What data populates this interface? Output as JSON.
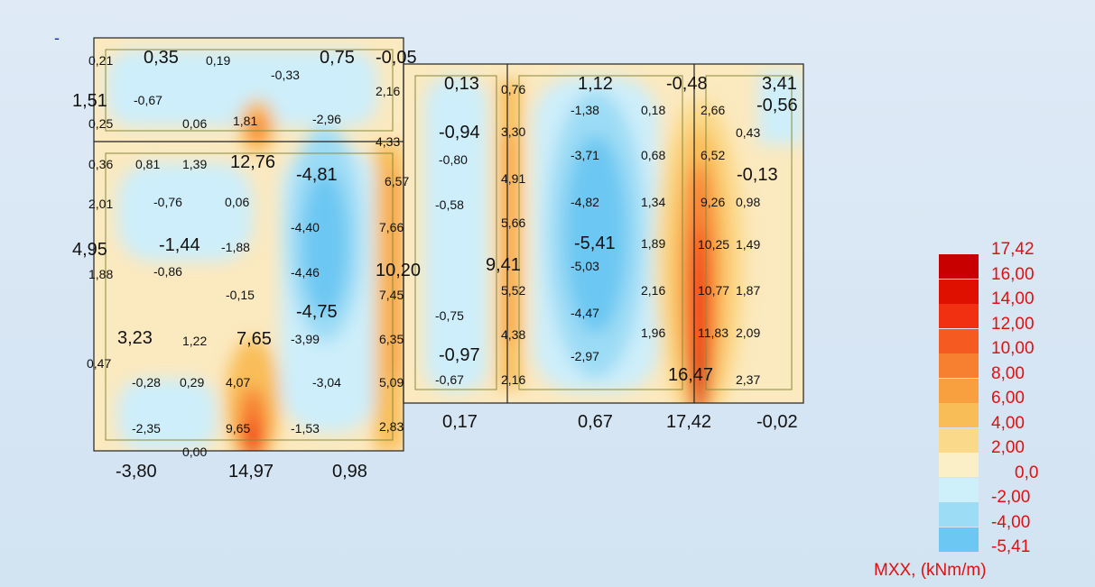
{
  "marker": "-",
  "legend": {
    "title": "MXX, (kNm/m)",
    "ticks": [
      "17,42",
      "16,00",
      "14,00",
      "12,00",
      "10,00",
      "8,00",
      "6,00",
      "4,00",
      "2,00",
      "0,0",
      "-2,00",
      "-4,00",
      "-5,41"
    ],
    "colors": [
      "#c80000",
      "#e01000",
      "#f03010",
      "#f55a20",
      "#f77f30",
      "#f8a040",
      "#f9bd58",
      "#fbd98a",
      "#fbefc8",
      "#cdf0fa",
      "#9ddcf5",
      "#6cc7f2"
    ]
  },
  "labels": [
    {
      "t": "0,35",
      "big": true
    },
    {
      "t": "0,75",
      "big": true
    },
    {
      "t": "-0,05",
      "big": true
    },
    {
      "t": "0,21"
    },
    {
      "t": "0,19"
    },
    {
      "t": "-0,33"
    },
    {
      "t": "1,51",
      "big": true
    },
    {
      "t": "-0,67"
    },
    {
      "t": "0,25"
    },
    {
      "t": "0,06"
    },
    {
      "t": "1,81"
    },
    {
      "t": "-2,96"
    },
    {
      "t": "2,16"
    },
    {
      "t": "4,33"
    },
    {
      "t": "0,36"
    },
    {
      "t": "0,81"
    },
    {
      "t": "1,39"
    },
    {
      "t": "12,76",
      "big": true
    },
    {
      "t": "-4,81",
      "big": true
    },
    {
      "t": "6,57"
    },
    {
      "t": "2,01"
    },
    {
      "t": "-0,76"
    },
    {
      "t": "0,06"
    },
    {
      "t": "-4,40"
    },
    {
      "t": "7,66"
    },
    {
      "t": "4,95",
      "big": true
    },
    {
      "t": "-1,44",
      "big": true
    },
    {
      "t": "-1,88"
    },
    {
      "t": "10,20",
      "big": true
    },
    {
      "t": "1,88"
    },
    {
      "t": "-0,86"
    },
    {
      "t": "-4,46"
    },
    {
      "t": "-0,15"
    },
    {
      "t": "7,45"
    },
    {
      "t": "-4,75",
      "big": true
    },
    {
      "t": "3,23",
      "big": true
    },
    {
      "t": "1,22"
    },
    {
      "t": "7,65",
      "big": true
    },
    {
      "t": "-3,99"
    },
    {
      "t": "6,35"
    },
    {
      "t": "0,47"
    },
    {
      "t": "-0,28"
    },
    {
      "t": "0,29"
    },
    {
      "t": "4,07"
    },
    {
      "t": "-3,04"
    },
    {
      "t": "5,09"
    },
    {
      "t": "-2,35"
    },
    {
      "t": "9,65"
    },
    {
      "t": "-1,53"
    },
    {
      "t": "2,83"
    },
    {
      "t": "0,00"
    },
    {
      "t": "-3,80",
      "big": true
    },
    {
      "t": "14,97",
      "big": true
    },
    {
      "t": "0,98",
      "big": true
    },
    {
      "t": "0,13",
      "big": true
    },
    {
      "t": "-0,94",
      "big": true
    },
    {
      "t": "-0,80"
    },
    {
      "t": "-0,58"
    },
    {
      "t": "9,41",
      "big": true
    },
    {
      "t": "-0,75"
    },
    {
      "t": "-0,97",
      "big": true
    },
    {
      "t": "-0,67"
    },
    {
      "t": "0,17",
      "big": true
    },
    {
      "t": "0,76"
    },
    {
      "t": "3,30"
    },
    {
      "t": "4,91"
    },
    {
      "t": "5,66"
    },
    {
      "t": "5,52"
    },
    {
      "t": "4,38"
    },
    {
      "t": "2,16"
    },
    {
      "t": "1,12",
      "big": true
    },
    {
      "t": "-1,38"
    },
    {
      "t": "0,18"
    },
    {
      "t": "-3,71"
    },
    {
      "t": "0,68"
    },
    {
      "t": "-4,82"
    },
    {
      "t": "1,34"
    },
    {
      "t": "-5,41",
      "big": true
    },
    {
      "t": "1,89"
    },
    {
      "t": "-5,03"
    },
    {
      "t": "2,16"
    },
    {
      "t": "-4,47"
    },
    {
      "t": "1,96"
    },
    {
      "t": "-2,97"
    },
    {
      "t": "0,67",
      "big": true
    },
    {
      "t": "-0,48",
      "big": true
    },
    {
      "t": "3,41",
      "big": true
    },
    {
      "t": "-0,56",
      "big": true
    },
    {
      "t": "2,66"
    },
    {
      "t": "0,43"
    },
    {
      "t": "6,52"
    },
    {
      "t": "-0,13",
      "big": true
    },
    {
      "t": "9,26"
    },
    {
      "t": "0,98"
    },
    {
      "t": "10,25"
    },
    {
      "t": "1,49"
    },
    {
      "t": "10,77"
    },
    {
      "t": "1,87"
    },
    {
      "t": "11,83"
    },
    {
      "t": "2,09"
    },
    {
      "t": "16,47",
      "big": true
    },
    {
      "t": "2,37"
    },
    {
      "t": "17,42",
      "big": true
    },
    {
      "t": "-0,02",
      "big": true
    }
  ]
}
